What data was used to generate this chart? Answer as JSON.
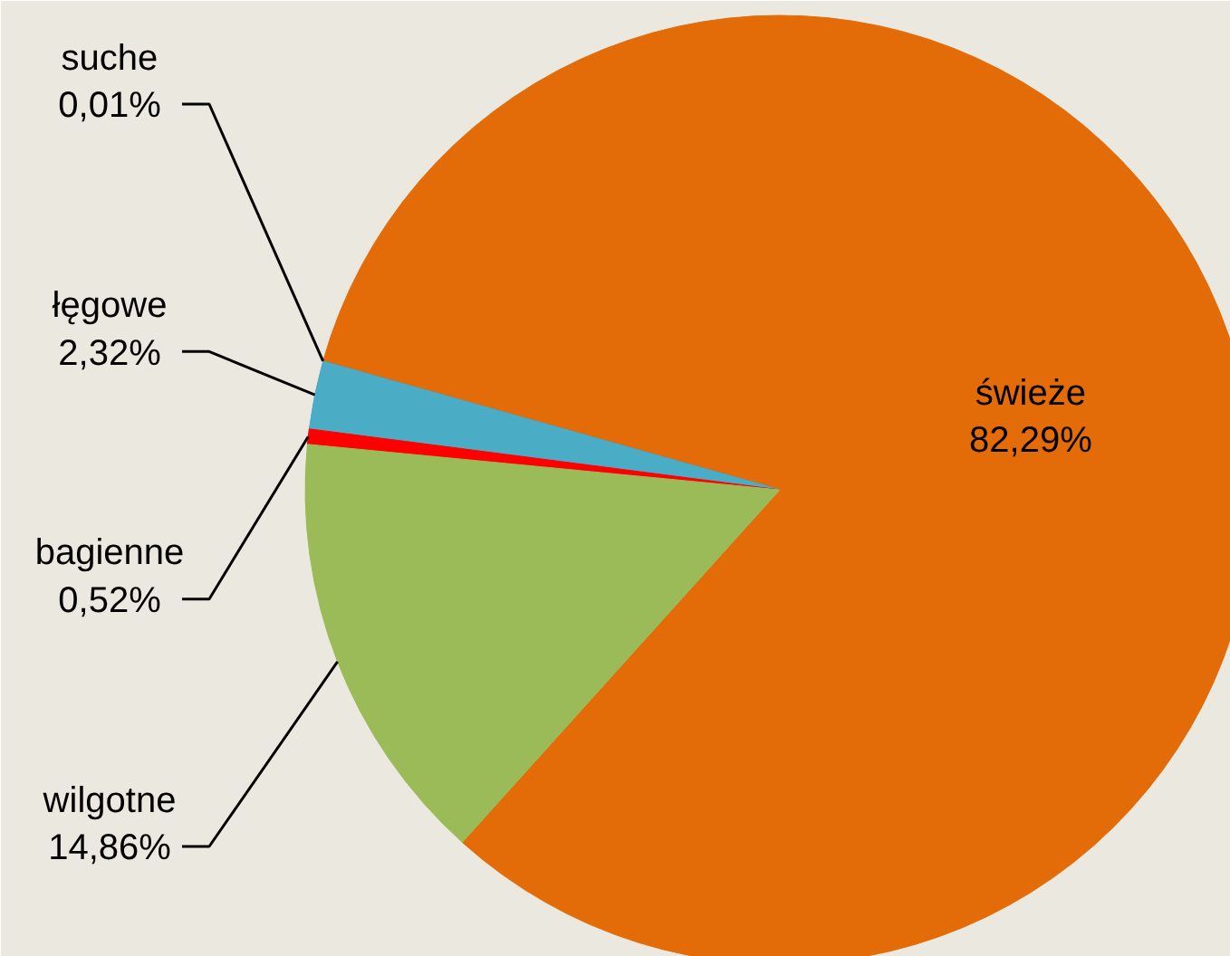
{
  "chart_data": {
    "type": "pie",
    "categories": [
      "świeże",
      "suche",
      "łęgowe",
      "bagienne",
      "wilgotne"
    ],
    "values": [
      82.29,
      0.01,
      2.32,
      0.52,
      14.86
    ],
    "colors": [
      "#e36c09",
      "#7f7f7f",
      "#4bacc6",
      "#ff0000",
      "#9bbb59"
    ],
    "value_labels": [
      "82,29%",
      "0,01%",
      "2,32%",
      "0,52%",
      "14,86%"
    ]
  }
}
